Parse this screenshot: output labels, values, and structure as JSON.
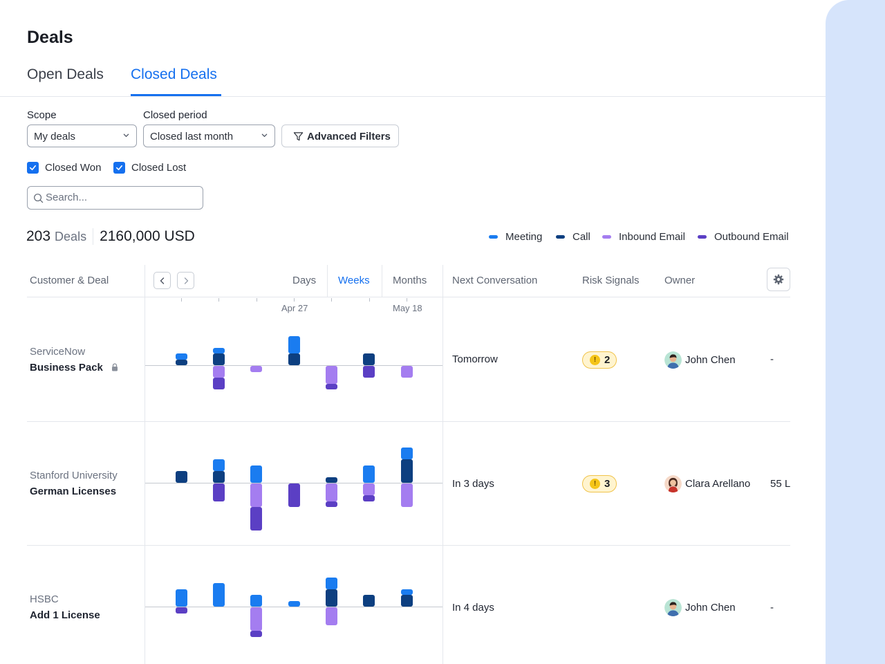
{
  "page_title": "Deals",
  "tabs": [
    {
      "label": "Open Deals",
      "active": false
    },
    {
      "label": "Closed Deals",
      "active": true
    }
  ],
  "filters": {
    "scope_label": "Scope",
    "scope_value": "My deals",
    "period_label": "Closed period",
    "period_value": "Closed last month",
    "advanced_label": "Advanced Filters",
    "closed_won_label": "Closed Won",
    "closed_won_checked": true,
    "closed_lost_label": "Closed Lost",
    "closed_lost_checked": true
  },
  "search": {
    "placeholder": "Search..."
  },
  "summary": {
    "count": "203",
    "count_unit": "Deals",
    "amount": "2160,000 USD"
  },
  "legend": [
    {
      "label": "Meeting",
      "color": "#1a7cf0"
    },
    {
      "label": "Call",
      "color": "#0d3f80"
    },
    {
      "label": "Inbound Email",
      "color": "#a47df0"
    },
    {
      "label": "Outbound Email",
      "color": "#5b3fc4"
    }
  ],
  "table": {
    "headers": {
      "customer_deal": "Customer & Deal",
      "next_conversation": "Next Conversation",
      "risk_signals": "Risk Signals",
      "owner": "Owner"
    },
    "time_scales": [
      "Days",
      "Weeks",
      "Months"
    ],
    "active_scale": "Weeks",
    "date_labels": [
      "Apr 27",
      "May 18"
    ],
    "rows": [
      {
        "customer": "ServiceNow",
        "deal": "Business Pack",
        "locked": true,
        "next_conversation": "Tomorrow",
        "risk_count": "2",
        "owner": "John Chen",
        "owner_avatar": "man",
        "extra": "-"
      },
      {
        "customer": "Stanford University",
        "deal": "German Licenses",
        "locked": false,
        "next_conversation": "In 3 days",
        "risk_count": "3",
        "owner": "Clara Arellano",
        "owner_avatar": "woman",
        "extra": "55 L"
      },
      {
        "customer": "HSBC",
        "deal": "Add 1 License",
        "locked": false,
        "next_conversation": "In 4 days",
        "risk_count": "",
        "owner": "John Chen",
        "owner_avatar": "man",
        "extra": "-"
      }
    ]
  },
  "chart_data": {
    "type": "bar",
    "stacked": true,
    "diverging": true,
    "note_values": "weekly activity counts per deal; positive = meeting/call, negative = inbound/outbound email",
    "periods": 7,
    "series": [
      {
        "name": "Meeting",
        "color": "#1a7cf0"
      },
      {
        "name": "Call",
        "color": "#0d3f80"
      },
      {
        "name": "Inbound Email",
        "color": "#a47df0"
      },
      {
        "name": "Outbound Email",
        "color": "#5b3fc4"
      }
    ],
    "rows": [
      {
        "deal": "Business Pack",
        "meeting": [
          1,
          1,
          0,
          3,
          0,
          0,
          0
        ],
        "call": [
          1,
          2,
          0,
          2,
          0,
          2,
          0
        ],
        "inbound": [
          0,
          2,
          1,
          0,
          3,
          0,
          2
        ],
        "outbound": [
          0,
          2,
          0,
          0,
          1,
          2,
          0
        ]
      },
      {
        "deal": "German Licenses",
        "meeting": [
          0,
          2,
          3,
          0,
          0,
          3,
          2
        ],
        "call": [
          2,
          2,
          0,
          0,
          1,
          0,
          4
        ],
        "inbound": [
          0,
          0,
          4,
          0,
          3,
          2,
          4
        ],
        "outbound": [
          0,
          3,
          4,
          4,
          1,
          1,
          0
        ]
      },
      {
        "deal": "Add 1 License",
        "meeting": [
          3,
          4,
          2,
          1,
          2,
          0,
          1
        ],
        "call": [
          0,
          0,
          0,
          0,
          3,
          2,
          2
        ],
        "inbound": [
          0,
          0,
          4,
          0,
          3,
          0,
          0
        ],
        "outbound": [
          1,
          0,
          1,
          0,
          0,
          0,
          0
        ]
      }
    ]
  }
}
